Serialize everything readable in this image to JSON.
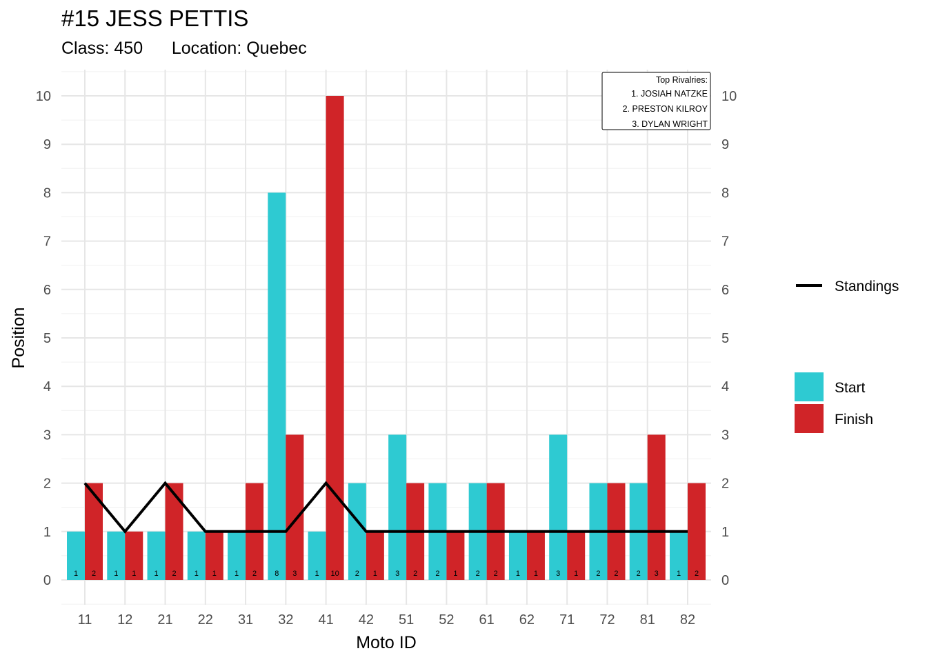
{
  "header": {
    "title": "#15 JESS PETTIS",
    "subtitle_class": "Class: 450",
    "subtitle_location": "Location: Quebec"
  },
  "rivalries": {
    "heading": "Top Rivalries:",
    "items": [
      "1. JOSIAH NATZKE",
      "2. PRESTON KILROY",
      "3. DYLAN WRIGHT"
    ]
  },
  "chart_data": {
    "type": "bar",
    "xlabel": "Moto ID",
    "ylabel": "Position",
    "ylim": [
      0,
      10
    ],
    "y_ticks": [
      0,
      1,
      2,
      3,
      4,
      5,
      6,
      7,
      8,
      9,
      10
    ],
    "grid": true,
    "legend_position": "right",
    "categories": [
      "11",
      "12",
      "21",
      "22",
      "31",
      "32",
      "41",
      "42",
      "51",
      "52",
      "61",
      "62",
      "71",
      "72",
      "81",
      "82"
    ],
    "series": [
      {
        "name": "Start",
        "color": "#2ECAD2",
        "values": [
          1,
          1,
          1,
          1,
          1,
          8,
          1,
          2,
          3,
          2,
          2,
          1,
          3,
          2,
          2,
          1
        ]
      },
      {
        "name": "Finish",
        "color": "#D02428",
        "values": [
          2,
          1,
          2,
          1,
          2,
          3,
          10,
          1,
          2,
          1,
          2,
          1,
          1,
          2,
          3,
          2
        ]
      }
    ],
    "line": {
      "name": "Standings",
      "color": "#000000",
      "values": [
        2,
        1,
        2,
        1,
        1,
        1,
        2,
        1,
        1,
        1,
        1,
        1,
        1,
        1,
        1,
        1
      ]
    }
  }
}
